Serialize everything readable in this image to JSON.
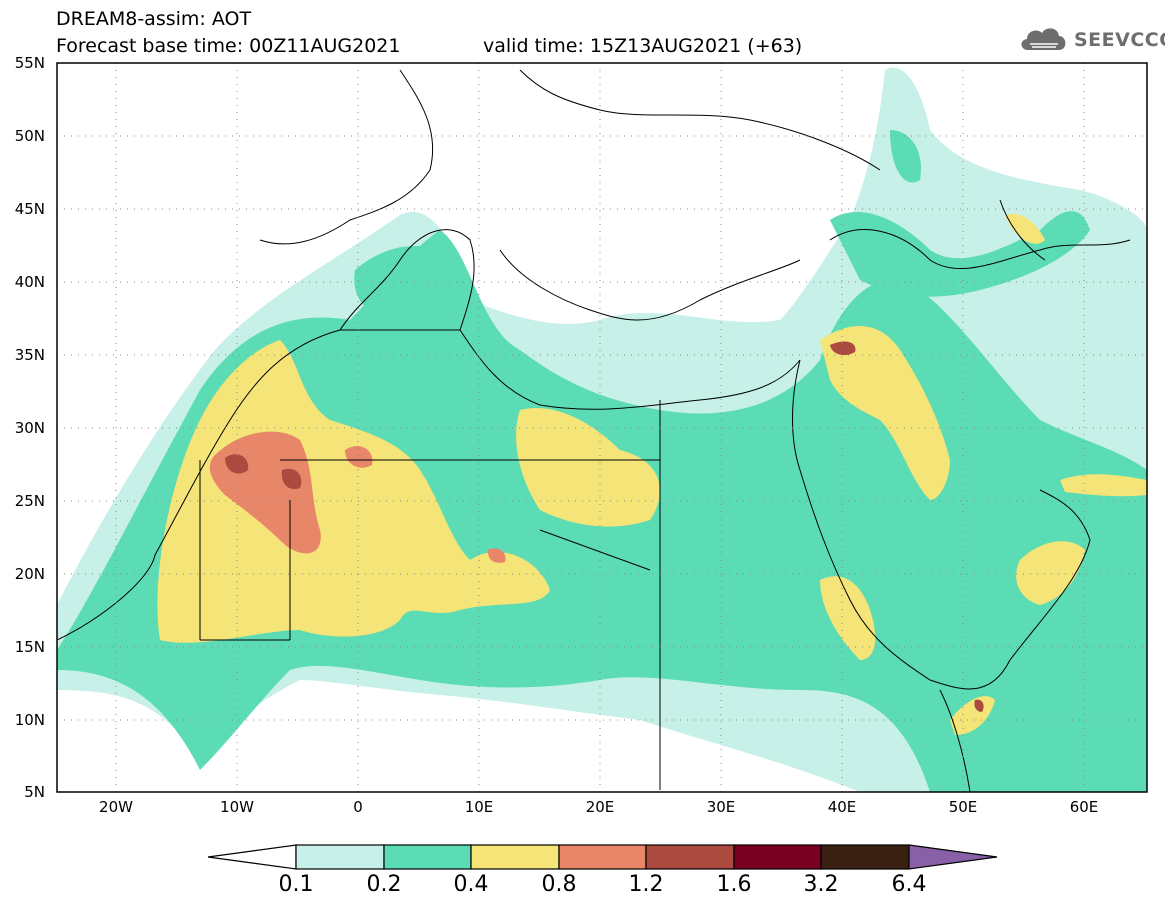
{
  "header": {
    "line1": "DREAM8-assim: AOT",
    "line2": "Forecast base time: 00Z11AUG2021",
    "line3": "valid time: 15Z13AUG2021 (+63)"
  },
  "logo": {
    "text": "SEEVCCC",
    "icon": "cloud-logo-icon"
  },
  "map": {
    "lon_range": [
      -25,
      65
    ],
    "lat_range": [
      5,
      55
    ],
    "x_ticks": [
      "20W",
      "10W",
      "0",
      "10E",
      "20E",
      "30E",
      "40E",
      "50E",
      "60E"
    ],
    "y_ticks": [
      "55N",
      "50N",
      "45N",
      "40N",
      "35N",
      "30N",
      "25N",
      "20N",
      "15N",
      "10N",
      "5N"
    ],
    "grid": "dotted"
  },
  "colorbar": {
    "labels": [
      "0.1",
      "0.2",
      "0.4",
      "0.8",
      "1.2",
      "1.6",
      "3.2",
      "6.4"
    ],
    "colors": [
      "#c6f0e8",
      "#5cdcb4",
      "#f5e478",
      "#e8866a",
      "#ac4a40",
      "#780020",
      "#3a2010",
      "#8860a8"
    ]
  }
}
